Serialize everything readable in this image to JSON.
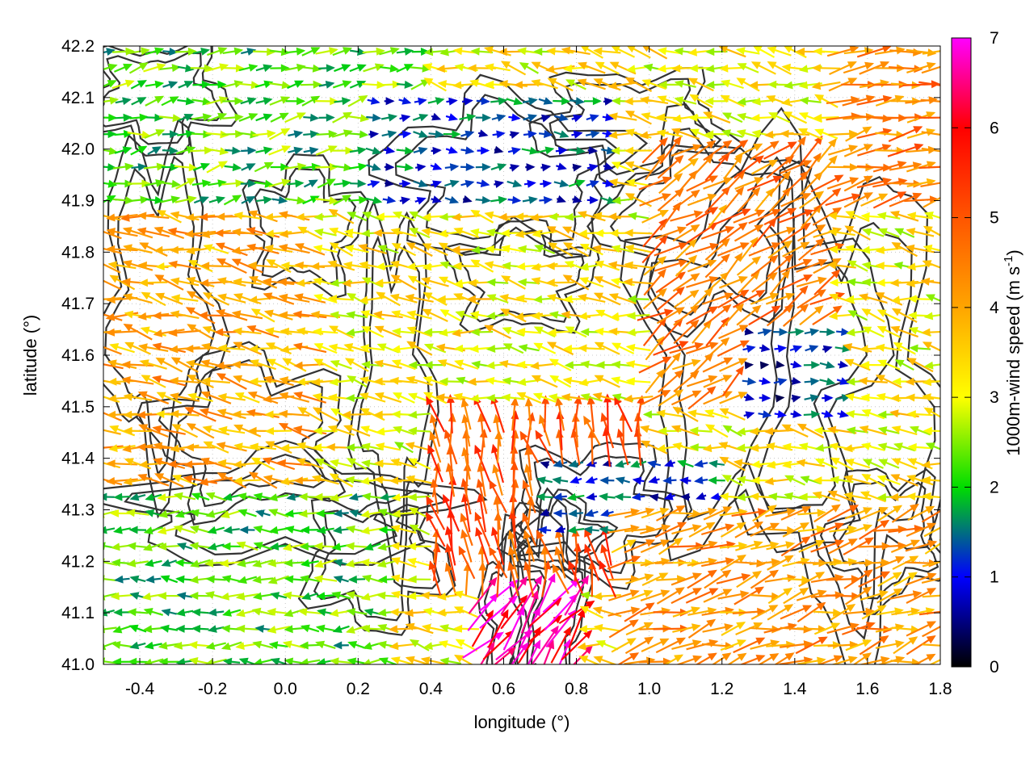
{
  "chart_data": {
    "type": "vector-field",
    "xlabel": "longitude (°)",
    "ylabel": "latitude (°)",
    "colorbar_label": "1000m-wind speed (m s-1)",
    "colorbar_label_main": "1000m-wind speed (m s",
    "colorbar_label_sup": "-1",
    "colorbar_label_end": ")",
    "xlim": [
      -0.5,
      1.8
    ],
    "ylim": [
      41.0,
      42.2
    ],
    "xticks": [
      "-0.4",
      "-0.2",
      "0.0",
      "0.2",
      "0.4",
      "0.6",
      "0.8",
      "1.0",
      "1.2",
      "1.4",
      "1.6",
      "1.8"
    ],
    "xtick_values": [
      -0.4,
      -0.2,
      0.0,
      0.2,
      0.4,
      0.6,
      0.8,
      1.0,
      1.2,
      1.4,
      1.6,
      1.8
    ],
    "yticks": [
      "41.0",
      "41.1",
      "41.2",
      "41.3",
      "41.4",
      "41.5",
      "41.6",
      "41.7",
      "41.8",
      "41.9",
      "42.0",
      "42.1",
      "42.2"
    ],
    "ytick_values": [
      41.0,
      41.1,
      41.2,
      41.3,
      41.4,
      41.5,
      41.6,
      41.7,
      41.8,
      41.9,
      42.0,
      42.1,
      42.2
    ],
    "cbticks": [
      "0",
      "1",
      "2",
      "3",
      "4",
      "5",
      "6",
      "7"
    ],
    "cb_range": [
      0,
      7
    ],
    "colormap": [
      {
        "v": 0,
        "color": "#000000"
      },
      {
        "v": 1,
        "color": "#0000ff"
      },
      {
        "v": 2,
        "color": "#00dd00"
      },
      {
        "v": 3,
        "color": "#ffff00"
      },
      {
        "v": 4,
        "color": "#ffa500"
      },
      {
        "v": 5,
        "color": "#ff5500"
      },
      {
        "v": 6,
        "color": "#ff0000"
      },
      {
        "v": 7,
        "color": "#ff00ff"
      }
    ],
    "contour_color": "#333333",
    "grid": "dotted",
    "wind_regions": [
      {
        "lon": [
          -0.5,
          0.3
        ],
        "lat": [
          41.0,
          41.35
        ],
        "speed": 2.2,
        "dir_deg": 180
      },
      {
        "lon": [
          -0.5,
          0.1
        ],
        "lat": [
          41.35,
          41.9
        ],
        "speed": 4.0,
        "dir_deg": 170
      },
      {
        "lon": [
          -0.5,
          0.4
        ],
        "lat": [
          41.9,
          42.2
        ],
        "speed": 2.2,
        "dir_deg": 10
      },
      {
        "lon": [
          0.2,
          0.9
        ],
        "lat": [
          41.9,
          42.1
        ],
        "speed": 1.2,
        "dir_deg": 0
      },
      {
        "lon": [
          0.5,
          0.8
        ],
        "lat": [
          41.0,
          41.15
        ],
        "speed": 6.5,
        "dir_deg": 50
      },
      {
        "lon": [
          0.4,
          1.0
        ],
        "lat": [
          41.15,
          41.5
        ],
        "speed": 5.0,
        "dir_deg": 100
      },
      {
        "lon": [
          0.7,
          1.2
        ],
        "lat": [
          41.25,
          41.4
        ],
        "speed": 1.2,
        "dir_deg": 180
      },
      {
        "lon": [
          1.0,
          1.5
        ],
        "lat": [
          41.5,
          42.0
        ],
        "speed": 4.5,
        "dir_deg": 35
      },
      {
        "lon": [
          1.25,
          1.55
        ],
        "lat": [
          41.48,
          41.65
        ],
        "speed": 1.0,
        "dir_deg": 0
      },
      {
        "lon": [
          0.9,
          1.8
        ],
        "lat": [
          41.0,
          41.3
        ],
        "speed": 4.2,
        "dir_deg": 15
      },
      {
        "lon": [
          1.5,
          1.8
        ],
        "lat": [
          41.9,
          42.2
        ],
        "speed": 4.5,
        "dir_deg": 10
      }
    ]
  }
}
